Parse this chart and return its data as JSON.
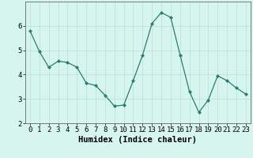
{
  "x": [
    0,
    1,
    2,
    3,
    4,
    5,
    6,
    7,
    8,
    9,
    10,
    11,
    12,
    13,
    14,
    15,
    16,
    17,
    18,
    19,
    20,
    21,
    22,
    23
  ],
  "y": [
    5.8,
    4.95,
    4.3,
    4.55,
    4.5,
    4.3,
    3.65,
    3.55,
    3.15,
    2.7,
    2.75,
    3.75,
    4.8,
    6.1,
    6.55,
    6.35,
    4.8,
    3.3,
    2.45,
    2.95,
    3.95,
    3.75,
    3.45,
    3.2
  ],
  "line_color": "#2a7d6f",
  "marker": "D",
  "marker_size": 2,
  "bg_color": "#d6f5ef",
  "grid_color": "#c0e0da",
  "xlabel": "Humidex (Indice chaleur)",
  "ylim": [
    2,
    7
  ],
  "xlim": [
    -0.5,
    23.5
  ],
  "yticks": [
    2,
    3,
    4,
    5,
    6
  ],
  "xticks": [
    0,
    1,
    2,
    3,
    4,
    5,
    6,
    7,
    8,
    9,
    10,
    11,
    12,
    13,
    14,
    15,
    16,
    17,
    18,
    19,
    20,
    21,
    22,
    23
  ],
  "axis_color": "#666666",
  "label_fontsize": 7.5,
  "tick_fontsize": 6.5
}
